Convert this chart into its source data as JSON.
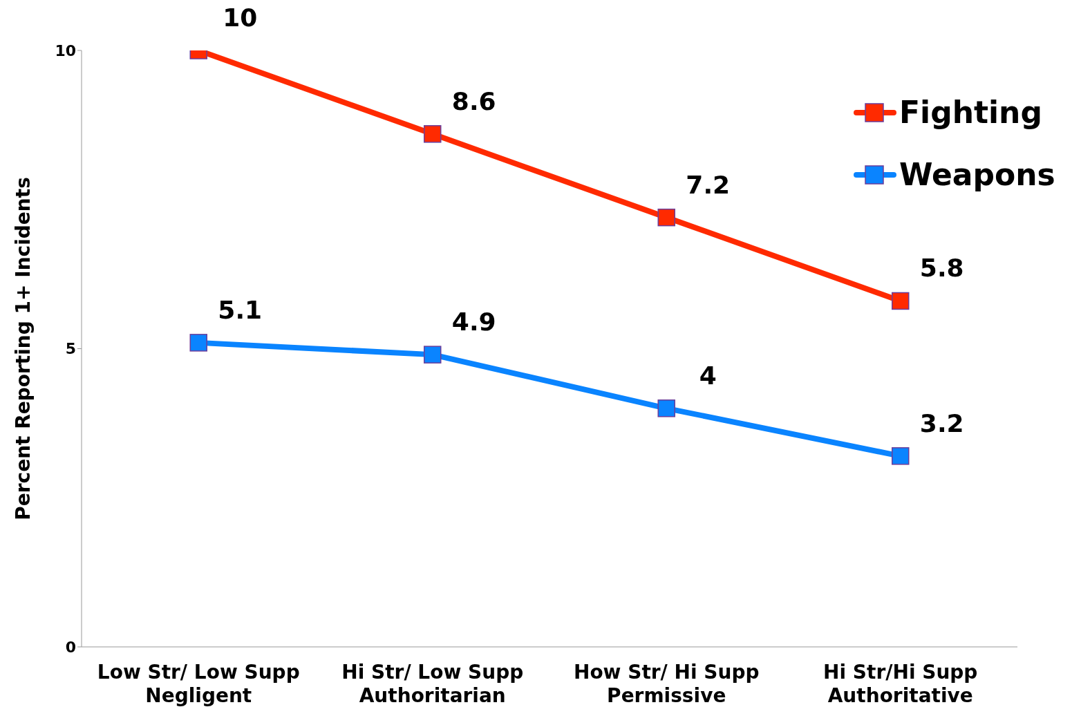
{
  "chart_data": {
    "type": "line",
    "ylabel": "Percent Reporting 1+ Incidents",
    "categories": [
      "Low Str/ Low Supp\nNegligent",
      "Hi Str/ Low Supp\nAuthoritarian",
      "How Str/ Hi Supp\nPermissive",
      "Hi Str/Hi Supp\nAuthoritative"
    ],
    "series": [
      {
        "name": "Fighting",
        "color": "#ff2a00",
        "values": [
          10,
          8.6,
          7.2,
          5.8
        ]
      },
      {
        "name": "Weapons",
        "color": "#0a84ff",
        "values": [
          5.1,
          4.9,
          4,
          3.2
        ]
      }
    ],
    "ylim": [
      0,
      10
    ],
    "yticks": [
      0,
      5,
      10
    ],
    "data_labels": true,
    "legend": "top right",
    "marker": "square",
    "grid": false
  }
}
